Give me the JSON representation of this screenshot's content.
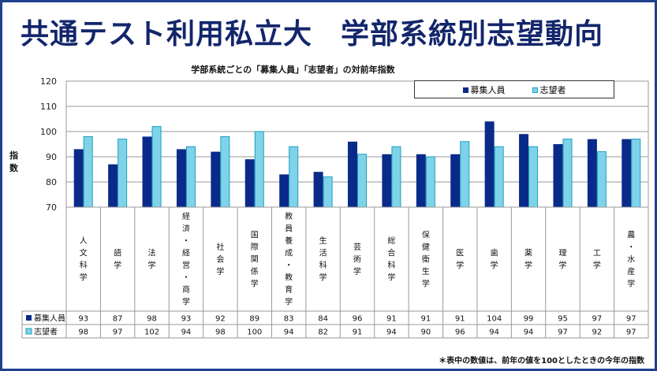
{
  "title": {
    "part1": "共通テスト利用私立大",
    "part2": "学部系統別志望動向"
  },
  "note": "＊表中の数値は、前年の値を100としたときの今年の指数",
  "colors": {
    "recruit": "#0a2a8a",
    "applicant": "#7fd3e8",
    "applicant_border": "#1aa0c0",
    "frame": "#1f3f8f"
  },
  "chart_data": {
    "type": "bar",
    "title": "学部系統ごとの「募集人員」「志望者」の対前年指数",
    "ylabel": "指数",
    "xlabel": "",
    "ylim": [
      70,
      120
    ],
    "yticks": [
      70,
      80,
      90,
      100,
      110,
      120
    ],
    "grid": true,
    "legend_position": "top-right",
    "categories": [
      "人文科学",
      "語学",
      "法学",
      "経済・経営・商学",
      "社会学",
      "国際関係学",
      "教員養成・教育学",
      "生活科学",
      "芸術学",
      "総合科学",
      "保健衛生学",
      "医学",
      "歯学",
      "薬学",
      "理学",
      "工学",
      "農・水産学"
    ],
    "series": [
      {
        "name": "募集人員",
        "values": [
          93,
          87,
          98,
          93,
          92,
          89,
          83,
          84,
          96,
          91,
          91,
          91,
          104,
          99,
          95,
          97,
          97
        ]
      },
      {
        "name": "志望者",
        "values": [
          98,
          97,
          102,
          94,
          98,
          100,
          94,
          82,
          91,
          94,
          90,
          96,
          94,
          94,
          97,
          92,
          97
        ]
      }
    ]
  }
}
